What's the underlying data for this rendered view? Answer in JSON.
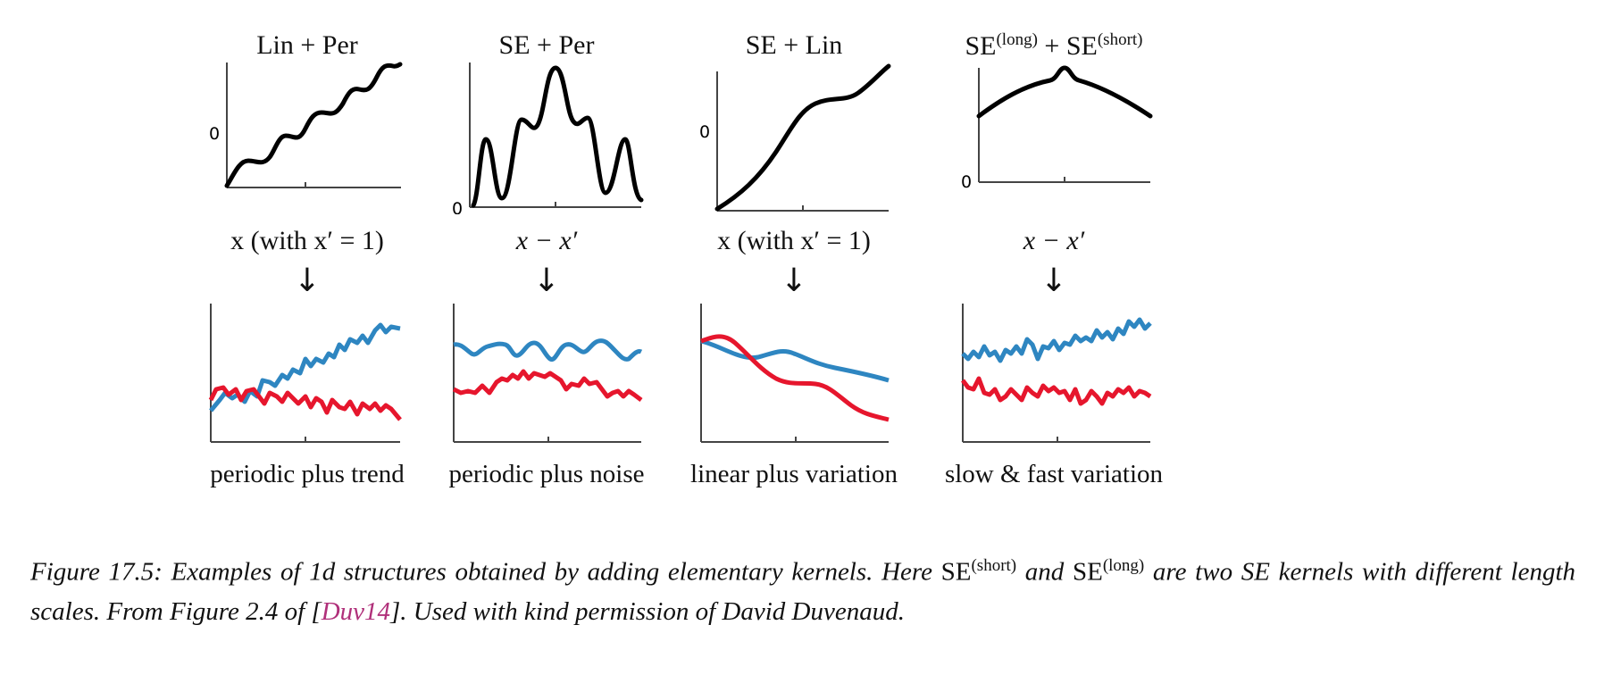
{
  "panels": [
    {
      "title_base": "Lin + Per",
      "xlabel": "x (with x′ = 1)",
      "arrow": "↓",
      "zero_tick": "0",
      "label": "periodic plus trend"
    },
    {
      "title_base": "SE + Per",
      "xlabel": "x − x′",
      "arrow": "↓",
      "zero_tick": "0",
      "label": "periodic plus noise"
    },
    {
      "title_base": "SE + Lin",
      "xlabel": "x (with x′ = 1)",
      "arrow": "↓",
      "zero_tick": "0",
      "label": "linear plus variation"
    },
    {
      "title_se1": "SE",
      "title_sup1": "(long)",
      "title_plus": " + ",
      "title_se2": "SE",
      "title_sup2": "(short)",
      "xlabel": "x − x′",
      "arrow": "↓",
      "zero_tick": "0",
      "label": "slow & fast variation"
    }
  ],
  "caption": {
    "part1": "Figure 17.5: Examples of 1d structures obtained by adding elementary kernels. Here ",
    "se1": "SE",
    "sup1": "(short)",
    "part2": " and ",
    "se2": "SE",
    "sup2": "(long)",
    "part3": " are two SE kernels with different length scales. From Figure 2.4 of [",
    "cite": "Duv14",
    "part4": "]. Used with kind permission of David Duvenaud."
  },
  "colors": {
    "curve": "#000000",
    "sample_blue": "#2e86c1",
    "sample_red": "#e6162d",
    "cite": "#b0307a"
  }
}
